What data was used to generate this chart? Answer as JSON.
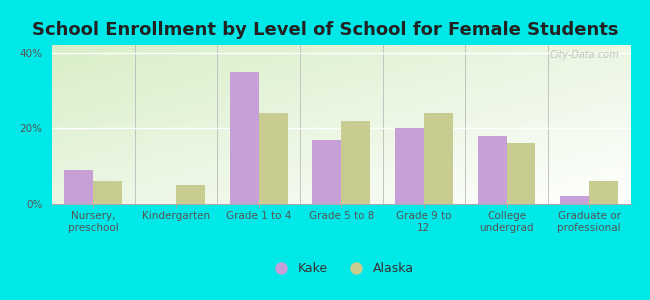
{
  "title": "School Enrollment by Level of School for Female Students",
  "categories": [
    "Nursery,\npreschool",
    "Kindergarten",
    "Grade 1 to 4",
    "Grade 5 to 8",
    "Grade 9 to\n12",
    "College\nundergrad",
    "Graduate or\nprofessional"
  ],
  "kake_values": [
    9.0,
    0.0,
    35.0,
    17.0,
    20.0,
    18.0,
    2.0
  ],
  "alaska_values": [
    6.0,
    5.0,
    24.0,
    22.0,
    24.0,
    16.0,
    6.0
  ],
  "kake_color": "#c8a0d8",
  "alaska_color": "#c8cc90",
  "background_color": "#00e8e8",
  "ylim": [
    0,
    42
  ],
  "yticks": [
    0,
    20,
    40
  ],
  "ytick_labels": [
    "0%",
    "20%",
    "40%"
  ],
  "bar_width": 0.35,
  "title_fontsize": 13,
  "tick_fontsize": 7.5,
  "legend_fontsize": 9,
  "watermark_text": "City-Data.com"
}
